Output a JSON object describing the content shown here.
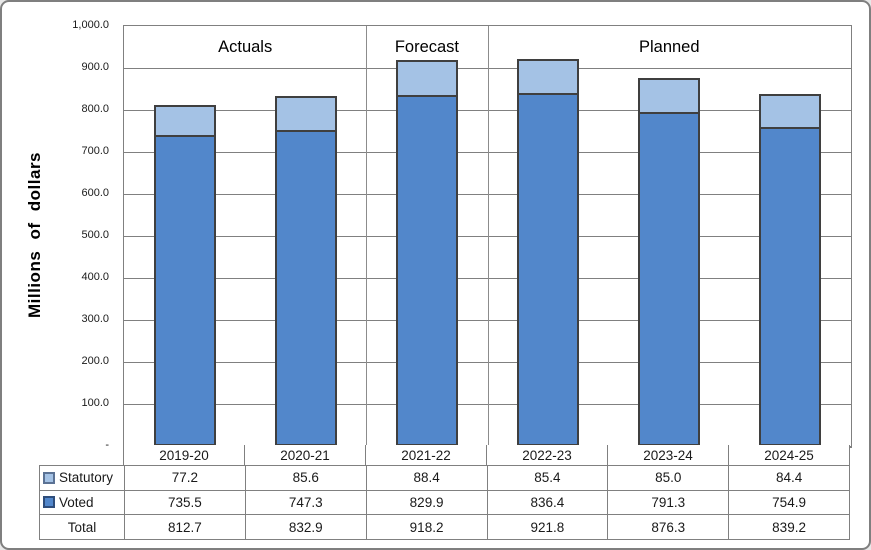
{
  "chart_data": {
    "type": "bar",
    "stacked": true,
    "ylabel": "Millions of dollars",
    "categories": [
      "2019-20",
      "2020-21",
      "2021-22",
      "2022-23",
      "2023-24",
      "2024-25"
    ],
    "series": [
      {
        "name": "Statutory",
        "values": [
          77.2,
          85.6,
          88.4,
          85.4,
          85.0,
          84.4
        ]
      },
      {
        "name": "Voted",
        "values": [
          735.5,
          747.3,
          829.9,
          836.4,
          791.3,
          754.9
        ]
      }
    ],
    "totals": {
      "label": "Total",
      "values": [
        812.7,
        832.9,
        918.2,
        921.8,
        876.3,
        839.2
      ]
    },
    "sections": [
      {
        "label": "Actuals",
        "span": 2
      },
      {
        "label": "Forecast",
        "span": 1
      },
      {
        "label": "Planned",
        "span": 3
      }
    ],
    "ylim": [
      0,
      1000
    ],
    "y_step": 100,
    "grid": true,
    "legend_position": "table-left",
    "y_tick_labels": [
      "1,000.0",
      "900.0",
      "800.0",
      "700.0",
      "600.0",
      "500.0",
      "400.0",
      "300.0",
      "200.0",
      "100.0",
      "-"
    ]
  },
  "colors": {
    "statutory_fill": "#a4c2e5",
    "voted_fill": "#5287cb",
    "bar_border": "#3f3f3f",
    "grid_line": "#808080",
    "frame": "#808080",
    "swatch_statutory_border": "#5b7294",
    "swatch_voted_border": "#2e4d7b",
    "text": "#1a1a1a"
  }
}
